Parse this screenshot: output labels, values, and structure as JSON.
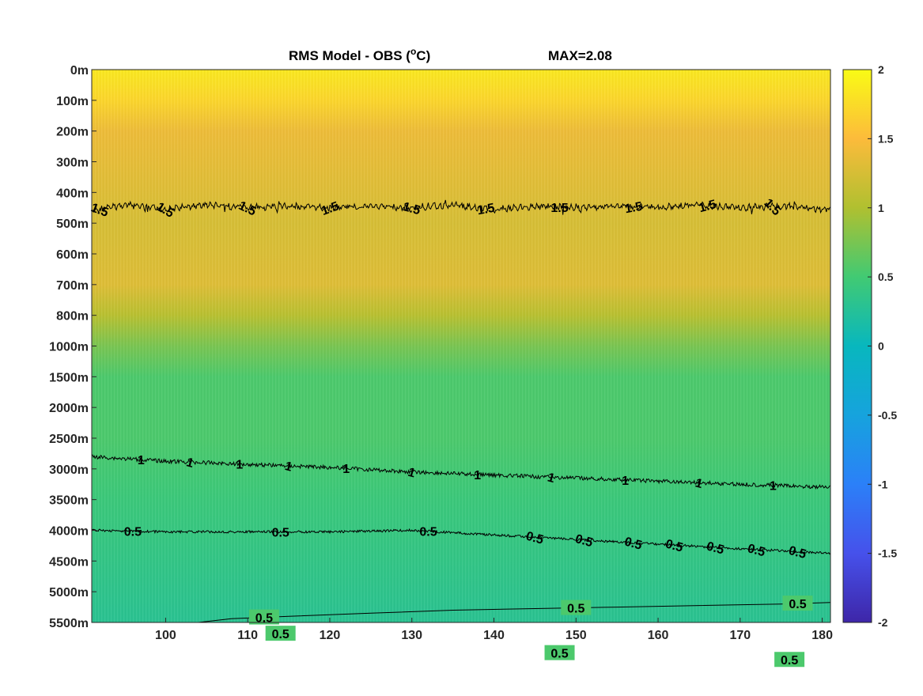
{
  "chart_data": {
    "type": "heatmap",
    "title": "RMS Model - OBS (",
    "title_superscript": "o",
    "title_unit": "C)",
    "max_label": "MAX=2.08",
    "colormap": "parula",
    "xlim": [
      91,
      181
    ],
    "x_ticks": [
      100,
      110,
      120,
      130,
      140,
      150,
      160,
      170,
      180
    ],
    "x_tick_labels": [
      "100",
      "110",
      "120",
      "130",
      "140",
      "150",
      "160",
      "170",
      "180"
    ],
    "y_tick_labels": [
      "0m",
      "100m",
      "200m",
      "300m",
      "400m",
      "500m",
      "600m",
      "700m",
      "800m",
      "1000m",
      "1500m",
      "2000m",
      "2500m",
      "3000m",
      "3500m",
      "4000m",
      "4500m",
      "5000m",
      "5500m"
    ],
    "colorbar": {
      "clim": [
        -2,
        2
      ],
      "ticks": [
        2,
        1.5,
        1,
        0.5,
        0,
        -0.5,
        -1,
        -1.5,
        -2
      ],
      "tick_labels": [
        "2",
        "1.5",
        "1",
        "0.5",
        "0",
        "-0.5",
        "-1",
        "-1.5",
        "-2"
      ]
    },
    "value_profile_by_depth": [
      {
        "depth": "0m",
        "value": 1.85
      },
      {
        "depth": "100m",
        "value": 1.7
      },
      {
        "depth": "200m",
        "value": 1.4
      },
      {
        "depth": "500m",
        "value": 1.25
      },
      {
        "depth": "700m",
        "value": 1.3
      },
      {
        "depth": "800m",
        "value": 1.05
      },
      {
        "depth": "1000m",
        "value": 0.75
      },
      {
        "depth": "1500m",
        "value": 0.55
      },
      {
        "depth": "2500m",
        "value": 0.55
      },
      {
        "depth": "3500m",
        "value": 0.45
      },
      {
        "depth": "5500m",
        "value": 0.3
      }
    ],
    "contours": [
      {
        "level": 1.5,
        "label": "1.5",
        "points": [
          [
            91,
            4.6
          ],
          [
            95,
            4.4
          ],
          [
            100,
            4.55
          ],
          [
            105,
            4.4
          ],
          [
            110,
            4.5
          ],
          [
            115,
            4.45
          ],
          [
            120,
            4.5
          ],
          [
            125,
            4.45
          ],
          [
            130,
            4.5
          ],
          [
            135,
            4.4
          ],
          [
            140,
            4.55
          ],
          [
            145,
            4.45
          ],
          [
            150,
            4.5
          ],
          [
            155,
            4.45
          ],
          [
            160,
            4.5
          ],
          [
            165,
            4.4
          ],
          [
            170,
            4.5
          ],
          [
            175,
            4.45
          ],
          [
            181,
            4.55
          ]
        ],
        "label_x": [
          92,
          100,
          110,
          120,
          130,
          139,
          148,
          157,
          166,
          174
        ]
      },
      {
        "level": 1.0,
        "label": "1",
        "points": [
          [
            91,
            12.6
          ],
          [
            100,
            12.75
          ],
          [
            110,
            12.85
          ],
          [
            120,
            12.95
          ],
          [
            130,
            13.1
          ],
          [
            140,
            13.2
          ],
          [
            150,
            13.3
          ],
          [
            160,
            13.4
          ],
          [
            170,
            13.5
          ],
          [
            181,
            13.6
          ]
        ],
        "label_x": [
          97,
          103,
          109,
          115,
          122,
          130,
          138,
          147,
          156,
          165,
          174
        ]
      },
      {
        "level": 0.5,
        "label": "0.5",
        "points": [
          [
            91,
            15.0
          ],
          [
            100,
            15.05
          ],
          [
            110,
            15.05
          ],
          [
            120,
            15.05
          ],
          [
            130,
            15.0
          ],
          [
            140,
            15.15
          ],
          [
            150,
            15.3
          ],
          [
            160,
            15.45
          ],
          [
            170,
            15.6
          ],
          [
            181,
            15.75
          ]
        ],
        "label_x": [
          96,
          114,
          132,
          145,
          151,
          157,
          162,
          167,
          172,
          177
        ]
      },
      {
        "level": 0.5,
        "label": "0.5",
        "points": [
          [
            181,
            17.35
          ],
          [
            175,
            17.4
          ],
          [
            165,
            17.45
          ],
          [
            155,
            17.5
          ],
          [
            145,
            17.55
          ],
          [
            135,
            17.6
          ],
          [
            125,
            17.7
          ],
          [
            115,
            17.8
          ],
          [
            108,
            17.88
          ],
          [
            104,
            18.0
          ],
          [
            108,
            18.15
          ],
          [
            115,
            18.4
          ],
          [
            124,
            18.7
          ],
          [
            135,
            18.85
          ],
          [
            145,
            18.95
          ],
          [
            155,
            19.1
          ],
          [
            165,
            19.15
          ],
          [
            175,
            19.2
          ],
          [
            181,
            19.3
          ]
        ],
        "label_x": [
          112,
          150,
          177,
          114,
          148,
          176
        ]
      }
    ]
  }
}
